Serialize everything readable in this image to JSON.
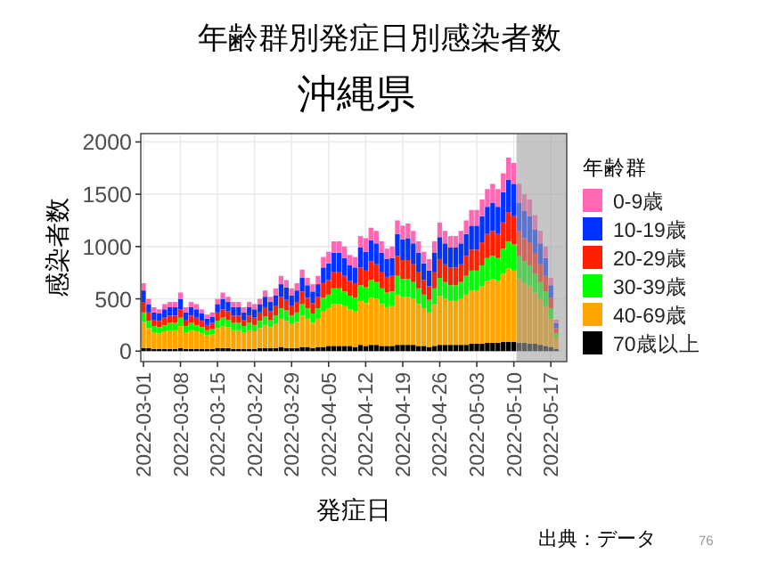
{
  "chart_data": {
    "type": "bar",
    "stacked": true,
    "title": "年齢群別発症日別感染者数",
    "subtitle": "沖縄県",
    "xlabel": "発症日",
    "ylabel": "感染者数",
    "legend_title": "年齢群",
    "annotations": [
      "出典：データ",
      "76"
    ],
    "x": [
      "2022-03-01",
      "2022-03-02",
      "2022-03-03",
      "2022-03-04",
      "2022-03-05",
      "2022-03-06",
      "2022-03-07",
      "2022-03-08",
      "2022-03-09",
      "2022-03-10",
      "2022-03-11",
      "2022-03-12",
      "2022-03-13",
      "2022-03-14",
      "2022-03-15",
      "2022-03-16",
      "2022-03-17",
      "2022-03-18",
      "2022-03-19",
      "2022-03-20",
      "2022-03-21",
      "2022-03-22",
      "2022-03-23",
      "2022-03-24",
      "2022-03-25",
      "2022-03-26",
      "2022-03-27",
      "2022-03-28",
      "2022-03-29",
      "2022-03-30",
      "2022-03-31",
      "2022-04-01",
      "2022-04-02",
      "2022-04-03",
      "2022-04-04",
      "2022-04-05",
      "2022-04-06",
      "2022-04-07",
      "2022-04-08",
      "2022-04-09",
      "2022-04-10",
      "2022-04-11",
      "2022-04-12",
      "2022-04-13",
      "2022-04-14",
      "2022-04-15",
      "2022-04-16",
      "2022-04-17",
      "2022-04-18",
      "2022-04-19",
      "2022-04-20",
      "2022-04-21",
      "2022-04-22",
      "2022-04-23",
      "2022-04-24",
      "2022-04-25",
      "2022-04-26",
      "2022-04-27",
      "2022-04-28",
      "2022-04-29",
      "2022-04-30",
      "2022-05-01",
      "2022-05-02",
      "2022-05-03",
      "2022-05-04",
      "2022-05-05",
      "2022-05-06",
      "2022-05-07",
      "2022-05-08",
      "2022-05-09",
      "2022-05-10",
      "2022-05-11",
      "2022-05-12",
      "2022-05-13",
      "2022-05-14",
      "2022-05-15",
      "2022-05-16",
      "2022-05-17",
      "2022-05-18"
    ],
    "series": [
      {
        "name": "70歳以上",
        "color": "#000000",
        "values": [
          30,
          30,
          20,
          20,
          20,
          20,
          20,
          30,
          20,
          20,
          20,
          20,
          20,
          20,
          30,
          30,
          30,
          20,
          20,
          20,
          20,
          20,
          30,
          30,
          30,
          30,
          40,
          30,
          30,
          30,
          40,
          40,
          30,
          40,
          40,
          50,
          50,
          50,
          50,
          50,
          40,
          60,
          50,
          60,
          60,
          50,
          50,
          50,
          60,
          60,
          60,
          60,
          50,
          50,
          40,
          50,
          60,
          60,
          60,
          60,
          60,
          60,
          70,
          70,
          70,
          80,
          80,
          80,
          90,
          90,
          90,
          80,
          80,
          70,
          70,
          60,
          50,
          40,
          20
        ]
      },
      {
        "name": "40-69歳",
        "color": "#ffa500",
        "values": [
          250,
          190,
          160,
          150,
          170,
          180,
          180,
          210,
          160,
          180,
          170,
          150,
          130,
          140,
          190,
          210,
          200,
          180,
          180,
          160,
          180,
          170,
          190,
          220,
          200,
          230,
          270,
          260,
          230,
          250,
          300,
          270,
          240,
          270,
          340,
          360,
          400,
          400,
          380,
          350,
          340,
          420,
          410,
          450,
          440,
          400,
          370,
          380,
          480,
          460,
          460,
          440,
          400,
          360,
          330,
          400,
          470,
          440,
          420,
          420,
          440,
          480,
          510,
          510,
          550,
          590,
          610,
          590,
          650,
          700,
          680,
          610,
          570,
          550,
          490,
          440,
          380,
          270,
          110
        ]
      },
      {
        "name": "30-39歳",
        "color": "#00ff00",
        "values": [
          90,
          70,
          60,
          60,
          60,
          70,
          70,
          80,
          60,
          70,
          60,
          60,
          50,
          50,
          70,
          80,
          70,
          70,
          70,
          60,
          70,
          60,
          70,
          80,
          70,
          80,
          100,
          100,
          80,
          90,
          110,
          100,
          90,
          100,
          130,
          130,
          150,
          150,
          140,
          130,
          130,
          150,
          150,
          170,
          160,
          150,
          140,
          140,
          180,
          170,
          170,
          160,
          150,
          130,
          120,
          150,
          170,
          160,
          150,
          150,
          160,
          180,
          190,
          190,
          200,
          220,
          220,
          220,
          240,
          260,
          250,
          220,
          210,
          200,
          180,
          160,
          140,
          100,
          40
        ]
      },
      {
        "name": "20-29歳",
        "color": "#ff2000",
        "values": [
          100,
          80,
          60,
          60,
          70,
          70,
          70,
          80,
          60,
          70,
          70,
          60,
          50,
          60,
          80,
          80,
          80,
          70,
          70,
          60,
          70,
          70,
          80,
          90,
          80,
          90,
          110,
          100,
          90,
          100,
          120,
          100,
          100,
          110,
          140,
          140,
          160,
          160,
          150,
          140,
          140,
          170,
          160,
          180,
          170,
          160,
          150,
          150,
          190,
          180,
          180,
          170,
          160,
          140,
          130,
          160,
          180,
          170,
          170,
          170,
          170,
          190,
          200,
          200,
          220,
          230,
          240,
          230,
          250,
          280,
          270,
          240,
          220,
          220,
          200,
          170,
          150,
          100,
          50
        ]
      },
      {
        "name": "10-19歳",
        "color": "#0033ff",
        "values": [
          110,
          80,
          70,
          70,
          80,
          80,
          80,
          100,
          70,
          80,
          80,
          70,
          60,
          60,
          80,
          100,
          90,
          80,
          80,
          70,
          80,
          80,
          80,
          100,
          90,
          100,
          120,
          120,
          100,
          110,
          130,
          120,
          110,
          120,
          150,
          160,
          180,
          180,
          170,
          150,
          150,
          190,
          180,
          200,
          200,
          180,
          170,
          170,
          210,
          200,
          210,
          200,
          180,
          160,
          150,
          180,
          210,
          200,
          190,
          190,
          200,
          210,
          230,
          230,
          250,
          260,
          270,
          260,
          290,
          310,
          310,
          270,
          260,
          250,
          220,
          200,
          170,
          120,
          50
        ]
      },
      {
        "name": "0-9歳",
        "color": "#ff69b4",
        "values": [
          70,
          50,
          50,
          40,
          50,
          50,
          50,
          60,
          50,
          50,
          50,
          40,
          40,
          40,
          50,
          60,
          50,
          50,
          50,
          50,
          50,
          50,
          50,
          60,
          50,
          70,
          80,
          70,
          70,
          70,
          80,
          70,
          70,
          80,
          100,
          110,
          110,
          110,
          110,
          100,
          100,
          110,
          130,
          120,
          120,
          110,
          100,
          110,
          130,
          130,
          140,
          120,
          110,
          110,
          110,
          110,
          140,
          120,
          110,
          110,
          120,
          130,
          150,
          150,
          160,
          170,
          180,
          170,
          180,
          210,
          200,
          180,
          160,
          160,
          140,
          120,
          110,
          70,
          30
        ]
      }
    ],
    "xlim": [
      "2022-02-28T12:00",
      "2022-05-20T00:00"
    ],
    "xticks": [
      "2022-03-01",
      "2022-03-08",
      "2022-03-15",
      "2022-03-22",
      "2022-03-29",
      "2022-04-05",
      "2022-04-12",
      "2022-04-19",
      "2022-04-26",
      "2022-05-03",
      "2022-05-10",
      "2022-05-17"
    ],
    "ylim": [
      -100,
      2080
    ],
    "yticks": [
      0,
      500,
      1000,
      1500,
      2000
    ],
    "bands": [
      {
        "axis": "x",
        "from": "2022-05-10T12:00",
        "to": "2022-05-20T00:00",
        "color": "#a0a0a0"
      }
    ],
    "grid": true,
    "legend": "right"
  }
}
